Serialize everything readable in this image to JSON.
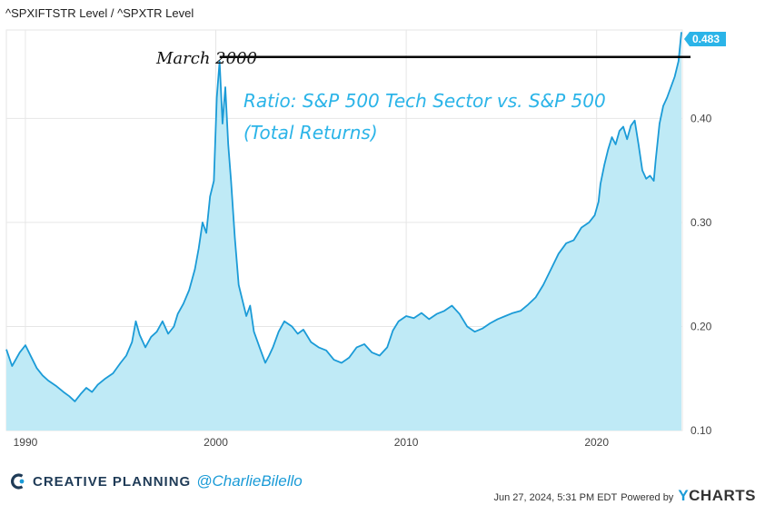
{
  "chart_data": {
    "type": "area",
    "title": "Ratio: S&P 500 Tech Sector vs. S&P 500",
    "subtitle": "(Total Returns)",
    "series_label": "^SPXIFTSTR Level / ^SPXTR Level",
    "annotation": "March 2000",
    "annotation_level": 0.459,
    "last_value_label": "0.483",
    "xlim": [
      1989.0,
      2024.5
    ],
    "ylim": [
      0.1,
      0.485
    ],
    "x_ticks": [
      1990,
      2000,
      2010,
      2020
    ],
    "y_ticks": [
      0.1,
      0.2,
      0.3,
      0.4
    ],
    "y_tick_labels": [
      "0.10",
      "0.20",
      "0.30",
      "0.40"
    ],
    "grid": true,
    "line_color": "#1b9bd7",
    "fill_color": "#bfeaf6",
    "x": [
      1989.0,
      1989.3,
      1989.7,
      1990.0,
      1990.3,
      1990.6,
      1990.9,
      1991.2,
      1991.6,
      1992.0,
      1992.3,
      1992.6,
      1992.9,
      1993.2,
      1993.5,
      1993.8,
      1994.2,
      1994.6,
      1995.0,
      1995.3,
      1995.6,
      1995.8,
      1996.0,
      1996.3,
      1996.6,
      1996.9,
      1997.2,
      1997.5,
      1997.8,
      1998.0,
      1998.3,
      1998.6,
      1998.9,
      1999.1,
      1999.3,
      1999.5,
      1999.7,
      1999.9,
      2000.05,
      2000.2,
      2000.35,
      2000.5,
      2000.65,
      2000.8,
      2001.0,
      2001.2,
      2001.4,
      2001.6,
      2001.8,
      2002.0,
      2002.3,
      2002.6,
      2002.8,
      2003.0,
      2003.3,
      2003.6,
      2004.0,
      2004.3,
      2004.6,
      2005.0,
      2005.4,
      2005.8,
      2006.2,
      2006.6,
      2007.0,
      2007.4,
      2007.8,
      2008.2,
      2008.6,
      2009.0,
      2009.3,
      2009.6,
      2010.0,
      2010.4,
      2010.8,
      2011.2,
      2011.6,
      2012.0,
      2012.4,
      2012.8,
      2013.2,
      2013.6,
      2014.0,
      2014.4,
      2014.8,
      2015.2,
      2015.6,
      2016.0,
      2016.4,
      2016.8,
      2017.2,
      2017.6,
      2018.0,
      2018.4,
      2018.8,
      2019.2,
      2019.6,
      2019.9,
      2020.1,
      2020.2,
      2020.4,
      2020.6,
      2020.8,
      2021.0,
      2021.2,
      2021.4,
      2021.6,
      2021.8,
      2022.0,
      2022.2,
      2022.4,
      2022.6,
      2022.8,
      2023.0,
      2023.1,
      2023.3,
      2023.5,
      2023.7,
      2023.9,
      2024.1,
      2024.3,
      2024.45
    ],
    "values": [
      0.178,
      0.162,
      0.175,
      0.182,
      0.171,
      0.16,
      0.153,
      0.148,
      0.143,
      0.137,
      0.133,
      0.128,
      0.135,
      0.141,
      0.137,
      0.144,
      0.15,
      0.155,
      0.165,
      0.172,
      0.185,
      0.205,
      0.192,
      0.18,
      0.19,
      0.195,
      0.205,
      0.193,
      0.2,
      0.212,
      0.222,
      0.235,
      0.255,
      0.275,
      0.3,
      0.29,
      0.325,
      0.34,
      0.42,
      0.455,
      0.395,
      0.43,
      0.375,
      0.34,
      0.285,
      0.24,
      0.225,
      0.21,
      0.22,
      0.195,
      0.18,
      0.165,
      0.172,
      0.18,
      0.195,
      0.205,
      0.2,
      0.193,
      0.197,
      0.185,
      0.18,
      0.177,
      0.168,
      0.165,
      0.17,
      0.18,
      0.183,
      0.175,
      0.172,
      0.18,
      0.196,
      0.205,
      0.21,
      0.208,
      0.213,
      0.207,
      0.212,
      0.215,
      0.22,
      0.212,
      0.2,
      0.195,
      0.198,
      0.203,
      0.207,
      0.21,
      0.213,
      0.215,
      0.221,
      0.228,
      0.24,
      0.255,
      0.27,
      0.28,
      0.283,
      0.295,
      0.3,
      0.307,
      0.32,
      0.337,
      0.355,
      0.37,
      0.382,
      0.375,
      0.388,
      0.392,
      0.38,
      0.393,
      0.398,
      0.375,
      0.35,
      0.342,
      0.345,
      0.34,
      0.36,
      0.395,
      0.412,
      0.42,
      0.43,
      0.44,
      0.455,
      0.483
    ]
  },
  "footer": {
    "brand": "CREATIVE PLANNING",
    "handle": "@CharlieBilello",
    "timestamp": "Jun 27, 2024, 5:31 PM EDT",
    "powered_by": "Powered by",
    "provider_initial": "Y",
    "provider_rest": "CHARTS"
  }
}
